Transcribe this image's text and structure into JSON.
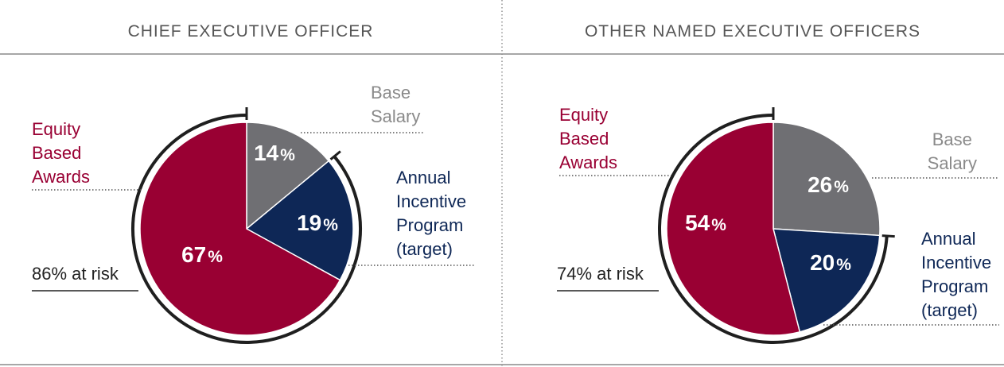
{
  "colors": {
    "equity": "#990033",
    "base": "#6f6f73",
    "annual": "#0e2756",
    "rule": "#8a8a8a",
    "header_text": "#555555",
    "risk_arc": "#1f1f1f"
  },
  "chart_data": [
    {
      "type": "pie",
      "title": "CHIEF EXECUTIVE OFFICER",
      "slices": [
        {
          "label": [
            "Base",
            "Salary"
          ],
          "value": 14,
          "display": "14",
          "color": "#6f6f73"
        },
        {
          "label": [
            "Annual",
            "Incentive",
            "Program",
            "(target)"
          ],
          "value": 19,
          "display": "19",
          "color": "#0e2756"
        },
        {
          "label": [
            "Equity",
            "Based",
            "Awards"
          ],
          "value": 67,
          "display": "67",
          "color": "#990033"
        }
      ],
      "at_risk_label": "86% at risk",
      "at_risk_value": 86
    },
    {
      "type": "pie",
      "title": "OTHER NAMED EXECUTIVE OFFICERS",
      "slices": [
        {
          "label": [
            "Base",
            "Salary"
          ],
          "value": 26,
          "display": "26",
          "color": "#6f6f73"
        },
        {
          "label": [
            "Annual",
            "Incentive",
            "Program",
            "(target)"
          ],
          "value": 20,
          "display": "20",
          "color": "#0e2756"
        },
        {
          "label": [
            "Equity",
            "Based",
            "Awards"
          ],
          "value": 54,
          "display": "54",
          "color": "#990033"
        }
      ],
      "at_risk_label": "74% at risk",
      "at_risk_value": 74
    }
  ]
}
